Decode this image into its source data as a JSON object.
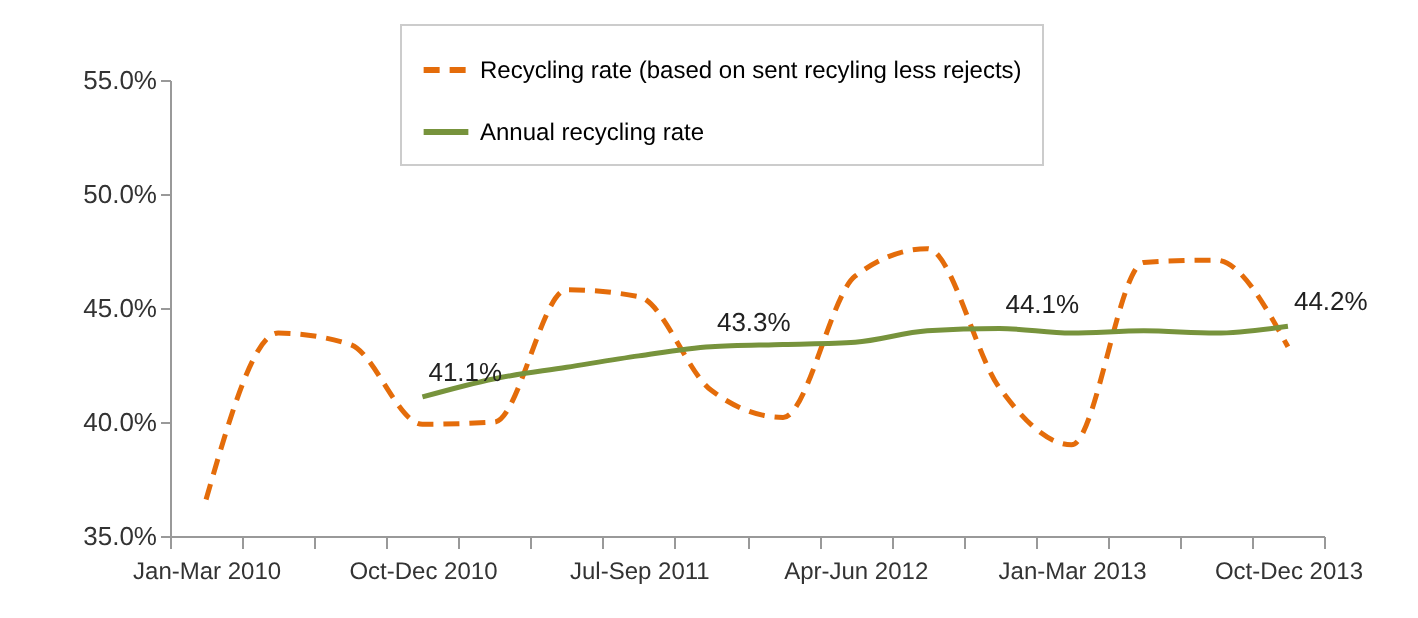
{
  "chart_data": {
    "type": "line",
    "categories": [
      "Jan-Mar 2010",
      null,
      null,
      "Oct-Dec 2010",
      null,
      null,
      "Jul-Sep 2011",
      null,
      null,
      "Apr-Jun 2012",
      null,
      null,
      "Jan-Mar 2013",
      null,
      null,
      "Oct-Dec 2013"
    ],
    "series": [
      {
        "name": "Recycling rate (based on sent recyling less rejects)",
        "color": "#e46c0a",
        "line_style": "dashed",
        "values": [
          36.6,
          43.9,
          43.4,
          39.9,
          40.0,
          45.8,
          45.5,
          41.4,
          40.2,
          46.4,
          47.6,
          41.5,
          39.0,
          47.0,
          47.1,
          43.3
        ]
      },
      {
        "name": "Annual recycling rate",
        "color": "#77933c",
        "line_style": "solid",
        "values": [
          null,
          null,
          null,
          41.1,
          41.9,
          42.4,
          42.9,
          43.3,
          43.4,
          43.5,
          44.0,
          44.1,
          43.9,
          44.0,
          43.9,
          44.2
        ],
        "value_labels": [
          null,
          null,
          null,
          "41.1%",
          null,
          null,
          null,
          "43.3%",
          null,
          null,
          null,
          "44.1%",
          null,
          null,
          null,
          "44.2%"
        ]
      }
    ],
    "ylim": [
      35,
      55
    ],
    "yticks": [
      {
        "value": 35,
        "label": "35.0%"
      },
      {
        "value": 40,
        "label": "40.0%"
      },
      {
        "value": 45,
        "label": "45.0%"
      },
      {
        "value": 50,
        "label": "50.0%"
      },
      {
        "value": 55,
        "label": "55.0%"
      }
    ],
    "grid": false,
    "legend": "top",
    "marker": "none"
  }
}
